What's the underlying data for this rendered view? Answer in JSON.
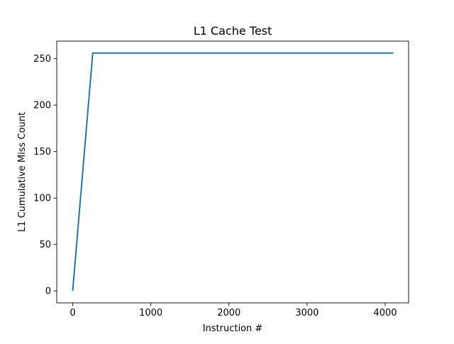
{
  "chart_data": {
    "type": "line",
    "title": "L1 Cache Test",
    "xlabel": "Instruction #",
    "ylabel": "L1 Cumulative Miss Count",
    "xlim": [
      -205,
      4300
    ],
    "ylim": [
      -12.8,
      268.8
    ],
    "xticks": [
      0,
      1000,
      2000,
      3000,
      4000
    ],
    "yticks": [
      0,
      50,
      100,
      150,
      200,
      250
    ],
    "grid": false,
    "series": [
      {
        "color": "#1f77b4",
        "x": [
          0,
          256,
          4095
        ],
        "y": [
          1,
          256,
          256
        ]
      }
    ]
  }
}
